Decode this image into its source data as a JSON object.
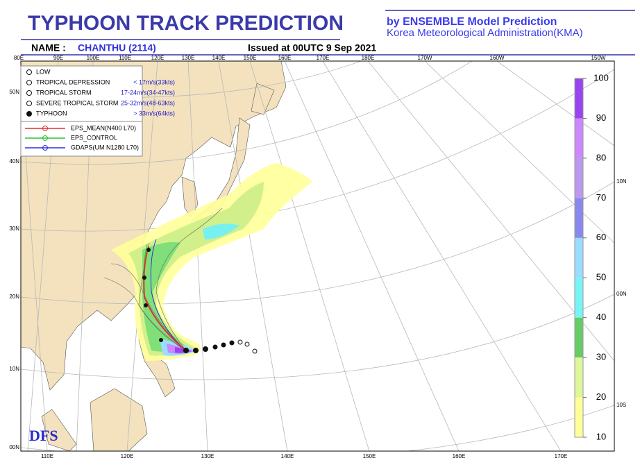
{
  "header": {
    "title": "TYPHOON TRACK PREDICTION",
    "subtitle1": "by ENSEMBLE Model Prediction",
    "subtitle2": "Korea Meteorological Administration(KMA)",
    "name_label": "NAME :",
    "name": "CHANTHU (2114)",
    "issued": "Issued at 00UTC  9 Sep 2021"
  },
  "map": {
    "top_lon_labels": [
      "80E",
      "90E",
      "100E",
      "110E",
      "120E",
      "130E",
      "140E",
      "150E",
      "160E",
      "170E",
      "180E",
      "170W",
      "160W",
      "150W"
    ],
    "bottom_lon_labels": [
      "110E",
      "120E",
      "130E",
      "140E",
      "150E",
      "160E",
      "170E"
    ],
    "left_lat_labels": [
      "50N",
      "40N",
      "30N",
      "20N",
      "10N",
      "00N"
    ],
    "right_lat_labels": [
      "10N",
      "00N",
      "10S"
    ]
  },
  "legend": {
    "intensity": [
      {
        "label": "LOW"
      },
      {
        "label": "TROPICAL DEPRESSION",
        "range": "< 17m/s(33kts)"
      },
      {
        "label": "TROPICAL STORM",
        "range": "17-24m/s(34-47kts)"
      },
      {
        "label": "SEVERE TROPICAL STORM",
        "range": "25-32m/s(48-63kts)"
      },
      {
        "label": "TYPHOON",
        "range": "> 33m/s(64kts)"
      }
    ],
    "models": [
      {
        "label": "EPS_MEAN(N400 L70)",
        "color": "#e03030"
      },
      {
        "label": "EPS_CONTROL",
        "color": "#30c030"
      },
      {
        "label": "GDAPS(UM N1280 L70)",
        "color": "#3030e0"
      }
    ]
  },
  "colorbar": {
    "ticks": [
      10,
      20,
      30,
      40,
      50,
      60,
      70,
      80,
      90,
      100
    ],
    "colors": [
      "#ffff99",
      "#ddf79a",
      "#66cc66",
      "#77f5f5",
      "#99ddff",
      "#8888ee",
      "#bb99ee",
      "#cc88ff",
      "#9944ee"
    ]
  },
  "logo": "DFS"
}
